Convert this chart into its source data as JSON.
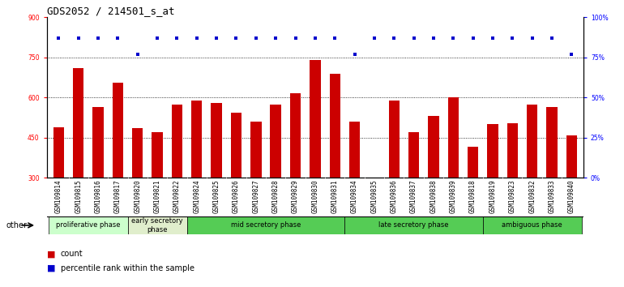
{
  "title": "GDS2052 / 214501_s_at",
  "categories": [
    "GSM109814",
    "GSM109815",
    "GSM109816",
    "GSM109817",
    "GSM109820",
    "GSM109821",
    "GSM109822",
    "GSM109824",
    "GSM109825",
    "GSM109826",
    "GSM109827",
    "GSM109828",
    "GSM109829",
    "GSM109830",
    "GSM109831",
    "GSM109834",
    "GSM109835",
    "GSM109836",
    "GSM109837",
    "GSM109838",
    "GSM109839",
    "GSM109818",
    "GSM109819",
    "GSM109823",
    "GSM109832",
    "GSM109833",
    "GSM109840"
  ],
  "bar_values": [
    490,
    710,
    565,
    655,
    485,
    470,
    575,
    590,
    580,
    545,
    510,
    575,
    615,
    740,
    690,
    510,
    300,
    590,
    470,
    530,
    600,
    415,
    500,
    505,
    575,
    565,
    460
  ],
  "dot_percentiles": [
    87,
    87,
    87,
    87,
    77,
    87,
    87,
    87,
    87,
    87,
    87,
    87,
    87,
    87,
    87,
    77,
    87,
    87,
    87,
    87,
    87,
    87,
    87,
    87,
    87,
    87,
    77
  ],
  "bar_color": "#cc0000",
  "dot_color": "#0000cc",
  "ylim_left": [
    300,
    900
  ],
  "ylim_right": [
    0,
    100
  ],
  "yticks_left": [
    300,
    450,
    600,
    750,
    900
  ],
  "yticks_right": [
    0,
    25,
    50,
    75,
    100
  ],
  "grid_values": [
    450,
    600,
    750
  ],
  "phase_groups": [
    {
      "label": "proliferative phase",
      "start": 0,
      "end": 4,
      "color": "#ccffcc"
    },
    {
      "label": "early secretory\nphase",
      "start": 4,
      "end": 7,
      "color": "#e0eecc"
    },
    {
      "label": "mid secretory phase",
      "start": 7,
      "end": 15,
      "color": "#55cc55"
    },
    {
      "label": "late secretory phase",
      "start": 15,
      "end": 22,
      "color": "#55cc55"
    },
    {
      "label": "ambiguous phase",
      "start": 22,
      "end": 27,
      "color": "#55cc55"
    }
  ],
  "other_label": "other",
  "legend_count_label": "count",
  "legend_percentile_label": "percentile rank within the sample",
  "title_fontsize": 9,
  "tick_fontsize": 5.5,
  "phase_fontsize": 6,
  "legend_fontsize": 7
}
